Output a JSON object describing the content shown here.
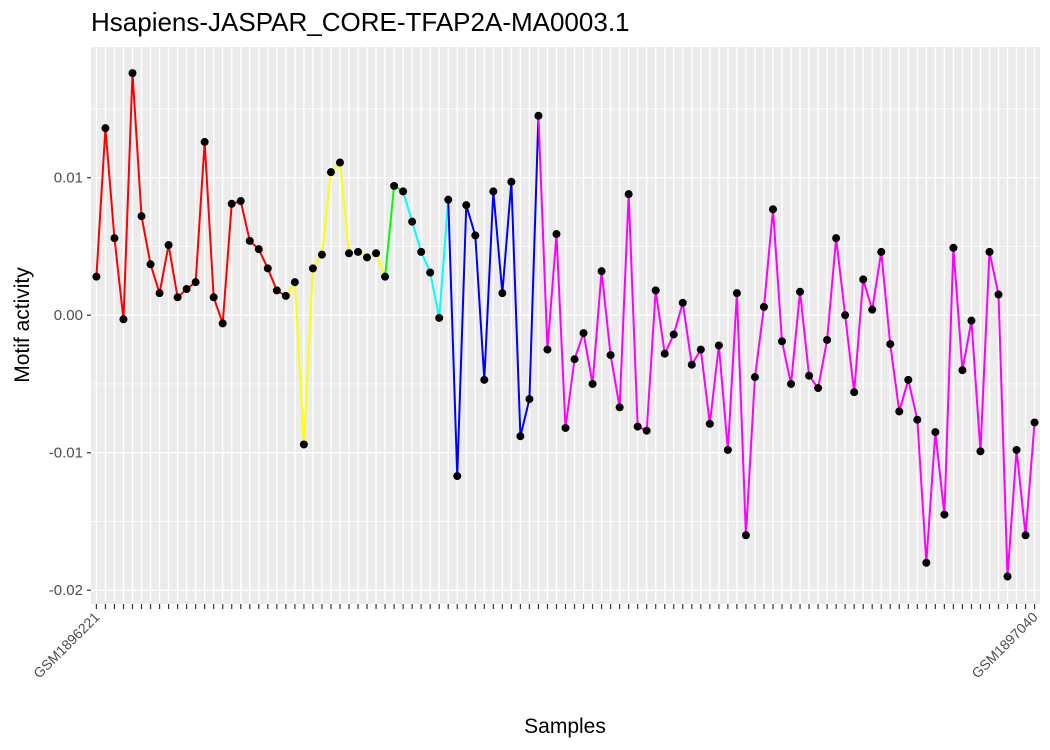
{
  "chart_data": {
    "type": "line",
    "title": "Hsapiens-JASPAR_CORE-TFAP2A-MA0003.1",
    "xlabel": "Samples",
    "ylabel": "Motif activity",
    "ylim": [
      -0.021,
      0.0195
    ],
    "yticks": [
      -0.02,
      -0.01,
      0.0,
      0.01
    ],
    "ytick_labels": [
      "-0.02",
      "-0.01",
      "0.00",
      "0.01"
    ],
    "grid": true,
    "panel_background": "#ebebeb",
    "grid_color": "#ffffff",
    "point_color": "#000000",
    "first_sample": "GSM1896221",
    "last_sample": "GSM1897040",
    "x": [
      1,
      2,
      3,
      4,
      5,
      6,
      7,
      8,
      9,
      10,
      11,
      12,
      13,
      14,
      15,
      16,
      17,
      18,
      19,
      20,
      21,
      22,
      23,
      24,
      25,
      26,
      27,
      28,
      29,
      30,
      31,
      32,
      33,
      34,
      35,
      36,
      37,
      38,
      39,
      40,
      41,
      42,
      43,
      44,
      45,
      46,
      47,
      48,
      49,
      50,
      51,
      52,
      53,
      54,
      55,
      56,
      57,
      58,
      59,
      60,
      61,
      62,
      63,
      64,
      65,
      66,
      67,
      68,
      69,
      70,
      71,
      72,
      73,
      74,
      75,
      76,
      77,
      78,
      79,
      80,
      81,
      82,
      83,
      84,
      85,
      86,
      87,
      88,
      89,
      90,
      91,
      92,
      93,
      94,
      95,
      96,
      97,
      98,
      99,
      100,
      101,
      102,
      103,
      104,
      105
    ],
    "values": [
      0.0028,
      0.0136,
      0.0056,
      -0.0003,
      0.0176,
      0.0072,
      0.0037,
      0.0016,
      0.0051,
      0.0013,
      0.0019,
      0.0024,
      0.0126,
      0.0013,
      -0.0006,
      0.0081,
      0.0083,
      0.0054,
      0.0048,
      0.0034,
      0.0018,
      0.0014,
      0.0024,
      -0.0094,
      0.0034,
      0.0044,
      0.0104,
      0.0111,
      0.0045,
      0.0046,
      0.0042,
      0.0045,
      0.0028,
      0.0094,
      0.009,
      0.0068,
      0.0046,
      0.0031,
      -0.0002,
      0.0084,
      -0.0117,
      0.008,
      0.0058,
      -0.0047,
      0.009,
      0.0016,
      0.0097,
      -0.0088,
      -0.0061,
      0.0145,
      -0.0025,
      0.0059,
      -0.0082,
      -0.0032,
      -0.0013,
      -0.005,
      0.0032,
      -0.0029,
      -0.0067,
      0.0088,
      -0.0081,
      -0.0084,
      0.0018,
      -0.0028,
      -0.0014,
      0.0009,
      -0.0036,
      -0.0025,
      -0.0079,
      -0.0022,
      -0.0098,
      0.0016,
      -0.016,
      -0.0045,
      0.0006,
      0.0077,
      -0.0019,
      -0.005,
      0.0017,
      -0.0044,
      -0.0053,
      -0.0018,
      0.0056,
      0.0,
      -0.0056,
      0.0026,
      0.0004,
      0.0046,
      -0.0021,
      -0.007,
      -0.0047,
      -0.0076,
      -0.018,
      -0.0085,
      -0.0145,
      0.0049,
      -0.004,
      -0.0004,
      -0.0099,
      0.0046,
      0.0015,
      -0.019,
      -0.0098,
      -0.016,
      -0.0078
    ],
    "series": [
      {
        "color": "#ff0000",
        "start": 1,
        "end": 22
      },
      {
        "color": "#ffff00",
        "start": 22,
        "end": 33
      },
      {
        "color": "#00ff00",
        "start": 33,
        "end": 35
      },
      {
        "color": "#00ffff",
        "start": 35,
        "end": 40
      },
      {
        "color": "#0000ff",
        "start": 40,
        "end": 50
      },
      {
        "color": "#ff00ff",
        "start": 50,
        "end": 105
      }
    ]
  }
}
